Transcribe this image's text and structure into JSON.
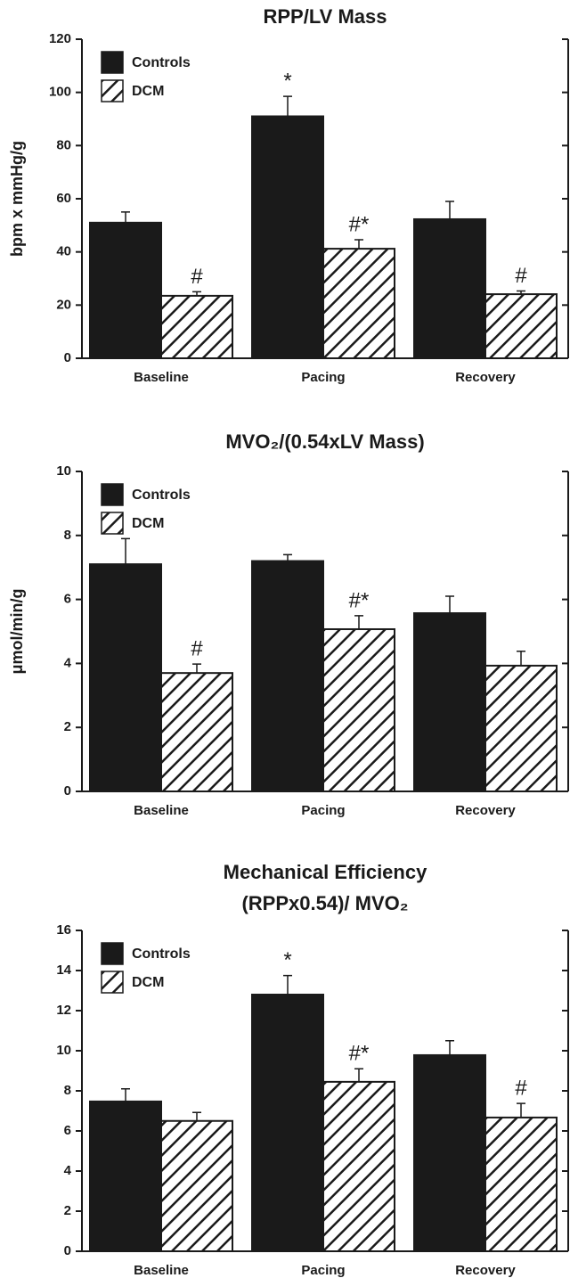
{
  "chart_data": [
    {
      "type": "bar",
      "title": [
        "RPP/LV Mass"
      ],
      "y_label": "bpm x mmHg/g",
      "categories": [
        "Baseline",
        "Pacing",
        "Recovery"
      ],
      "series": [
        {
          "name": "Controls",
          "color": "#1a1a1a",
          "hatch": false,
          "values": [
            51,
            91,
            52.3
          ],
          "errors": [
            4,
            7.5,
            6.7
          ],
          "markers": [
            null,
            "*",
            null
          ]
        },
        {
          "name": "DCM",
          "color": "#1a1a1a",
          "hatch": true,
          "values": [
            23.5,
            41.2,
            24.1
          ],
          "errors": [
            1.5,
            3.4,
            1.2
          ],
          "markers": [
            "#",
            "#*",
            "#"
          ]
        }
      ],
      "ylim": [
        0,
        120
      ],
      "yticks": [
        0,
        20,
        40,
        60,
        80,
        100,
        120
      ],
      "legend": "upper-left"
    },
    {
      "type": "bar",
      "title": [
        "MVO₂/(0.54xLV Mass)"
      ],
      "y_label": "μmol/min/g",
      "categories": [
        "Baseline",
        "Pacing",
        "Recovery"
      ],
      "series": [
        {
          "name": "Controls",
          "color": "#1a1a1a",
          "hatch": false,
          "values": [
            7.1,
            7.2,
            5.57
          ],
          "errors": [
            0.8,
            0.2,
            0.53
          ],
          "markers": [
            null,
            null,
            null
          ]
        },
        {
          "name": "DCM",
          "color": "#1a1a1a",
          "hatch": true,
          "values": [
            3.7,
            5.07,
            3.93
          ],
          "errors": [
            0.28,
            0.42,
            0.45
          ],
          "markers": [
            "#",
            "#*",
            null
          ]
        }
      ],
      "ylim": [
        0,
        10
      ],
      "yticks": [
        0,
        2,
        4,
        6,
        8,
        10
      ],
      "legend": "upper-left"
    },
    {
      "type": "bar",
      "title": [
        "Mechanical Efficiency",
        "(RPPx0.54)/ MVO₂"
      ],
      "categories": [
        "Baseline",
        "Pacing",
        "Recovery"
      ],
      "series": [
        {
          "name": "Controls",
          "color": "#1a1a1a",
          "hatch": false,
          "values": [
            7.47,
            12.8,
            9.78
          ],
          "errors": [
            0.63,
            0.95,
            0.72
          ],
          "markers": [
            null,
            "*",
            null
          ]
        },
        {
          "name": "DCM",
          "color": "#1a1a1a",
          "hatch": true,
          "values": [
            6.5,
            8.45,
            6.67
          ],
          "errors": [
            0.42,
            0.65,
            0.7
          ],
          "markers": [
            null,
            "#*",
            "#"
          ]
        }
      ],
      "ylim": [
        0,
        16
      ],
      "yticks": [
        0,
        2,
        4,
        6,
        8,
        10,
        12,
        14,
        16
      ],
      "legend": "upper-left"
    }
  ]
}
